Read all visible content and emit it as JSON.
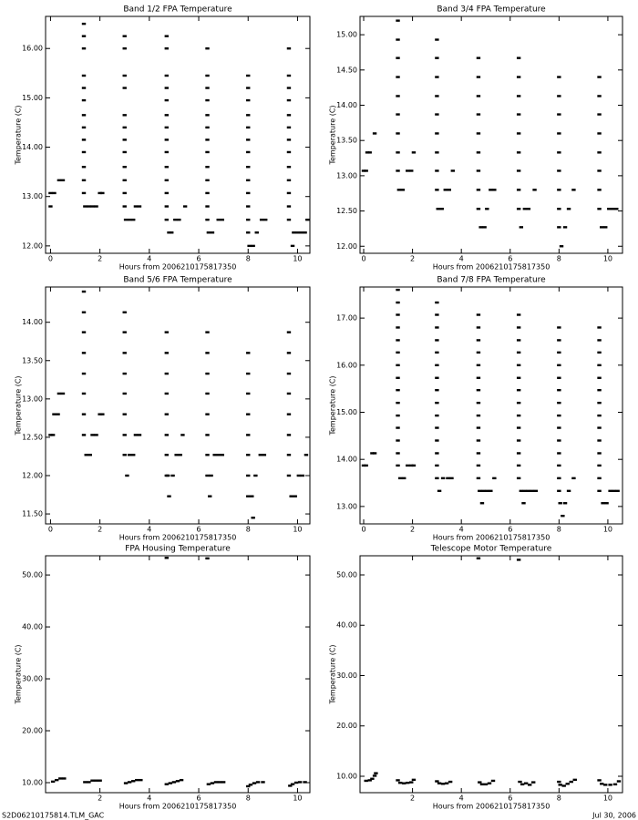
{
  "chart_data": [
    {
      "type": "scatter",
      "title": "Band 1/2 FPA Temperature",
      "xlabel": "Hours from 2006210175817350",
      "ylabel": "Temperature (C)",
      "color": "#000000",
      "xlim": [
        -0.2,
        10.5
      ],
      "ylim": [
        11.85,
        16.65
      ],
      "xticks": [
        0,
        2,
        4,
        6,
        8,
        10
      ],
      "yticks": [
        {
          "value": 12,
          "label": "12.00"
        },
        {
          "value": 13,
          "label": "13.00"
        },
        {
          "value": 14,
          "label": "14.00"
        },
        {
          "value": 15,
          "label": "15.00"
        },
        {
          "value": 16,
          "label": "16.00"
        }
      ],
      "x": [
        0,
        0,
        0.15,
        0.35,
        0.5,
        1.35,
        1.35,
        1.35,
        1.35,
        1.35,
        1.35,
        1.35,
        1.35,
        1.35,
        1.35,
        1.35,
        1.35,
        1.35,
        1.4,
        1.55,
        1.7,
        1.85,
        2.0,
        2.1,
        3.0,
        3.0,
        3.0,
        3.0,
        3.0,
        3.0,
        3.0,
        3.0,
        3.0,
        3.0,
        3.0,
        3.0,
        3.05,
        3.2,
        3.35,
        3.45,
        3.6,
        4.7,
        4.7,
        4.7,
        4.7,
        4.7,
        4.7,
        4.7,
        4.7,
        4.7,
        4.7,
        4.7,
        4.7,
        4.7,
        4.7,
        4.8,
        4.9,
        5.05,
        5.2,
        5.45,
        6.35,
        6.35,
        6.35,
        6.35,
        6.35,
        6.35,
        6.35,
        6.35,
        6.35,
        6.35,
        6.35,
        6.35,
        6.35,
        6.4,
        6.55,
        6.8,
        6.95,
        8.0,
        8.0,
        8.0,
        8.0,
        8.0,
        8.0,
        8.0,
        8.0,
        8.0,
        8.0,
        8.0,
        8.0,
        8.0,
        8.05,
        8.2,
        8.35,
        8.55,
        8.7,
        9.65,
        9.65,
        9.65,
        9.65,
        9.65,
        9.65,
        9.65,
        9.65,
        9.65,
        9.65,
        9.65,
        9.65,
        9.65,
        9.8,
        9.85,
        10.0,
        10.15,
        10.3,
        10.4
      ],
      "values": [
        12.8,
        13.07,
        13.07,
        13.33,
        13.33,
        16.5,
        16.25,
        16.0,
        15.45,
        15.2,
        14.95,
        14.65,
        14.4,
        14.15,
        13.9,
        13.6,
        13.33,
        13.07,
        12.8,
        12.8,
        12.8,
        12.8,
        13.07,
        13.07,
        16.25,
        16.0,
        15.45,
        15.2,
        14.65,
        14.4,
        14.15,
        13.9,
        13.6,
        13.33,
        13.07,
        12.8,
        12.53,
        12.53,
        12.53,
        12.8,
        12.8,
        16.25,
        16.0,
        15.45,
        15.2,
        14.95,
        14.65,
        14.4,
        14.15,
        13.9,
        13.6,
        13.33,
        13.07,
        12.8,
        12.53,
        12.27,
        12.27,
        12.53,
        12.53,
        12.8,
        16.0,
        15.45,
        15.2,
        14.95,
        14.65,
        14.4,
        14.15,
        13.9,
        13.6,
        13.33,
        13.07,
        12.8,
        12.53,
        12.27,
        12.27,
        12.53,
        12.53,
        15.45,
        15.2,
        14.95,
        14.65,
        14.4,
        14.15,
        13.9,
        13.6,
        13.33,
        13.07,
        12.8,
        12.53,
        12.27,
        12.0,
        12.0,
        12.27,
        12.53,
        12.53,
        16.0,
        15.45,
        15.2,
        14.95,
        14.65,
        14.4,
        14.15,
        13.9,
        13.6,
        13.33,
        13.07,
        12.8,
        12.53,
        12.0,
        12.27,
        12.27,
        12.27,
        12.27,
        12.53
      ]
    },
    {
      "type": "scatter",
      "title": "Band 3/4 FPA Temperature",
      "xlabel": "Hours from 2006210175817350",
      "ylabel": "Temperature (C)",
      "color": "#000000",
      "xlim": [
        -0.15,
        10.6
      ],
      "ylim": [
        11.9,
        15.26
      ],
      "xticks": [
        0,
        2,
        4,
        6,
        8,
        10
      ],
      "yticks": [
        {
          "value": 12,
          "label": "12.00"
        },
        {
          "value": 12.5,
          "label": "12.50"
        },
        {
          "value": 13,
          "label": "13.00"
        },
        {
          "value": 13.5,
          "label": "13.50"
        },
        {
          "value": 14,
          "label": "14.00"
        },
        {
          "value": 14.5,
          "label": "14.50"
        },
        {
          "value": 15,
          "label": "15.00"
        }
      ],
      "x": [
        0,
        0.1,
        0.15,
        0.25,
        0.45,
        1.4,
        1.4,
        1.4,
        1.4,
        1.4,
        1.4,
        1.4,
        1.4,
        1.4,
        1.45,
        1.6,
        1.8,
        1.95,
        2.05,
        3.0,
        3.0,
        3.0,
        3.0,
        3.0,
        3.0,
        3.0,
        3.0,
        3.0,
        3.05,
        3.2,
        3.35,
        3.5,
        3.65,
        4.7,
        4.7,
        4.7,
        4.7,
        4.7,
        4.7,
        4.7,
        4.7,
        4.7,
        4.8,
        4.95,
        5.05,
        5.2,
        5.35,
        6.35,
        6.35,
        6.35,
        6.35,
        6.35,
        6.35,
        6.35,
        6.35,
        6.35,
        6.45,
        6.6,
        6.75,
        7.0,
        8.0,
        8.0,
        8.0,
        8.0,
        8.0,
        8.0,
        8.0,
        8.0,
        8.0,
        8.1,
        8.25,
        8.4,
        8.6,
        9.65,
        9.65,
        9.65,
        9.65,
        9.65,
        9.65,
        9.65,
        9.65,
        9.75,
        9.9,
        10.05,
        10.2,
        10.35
      ],
      "values": [
        13.07,
        13.07,
        13.33,
        13.33,
        13.6,
        15.2,
        14.93,
        14.67,
        14.4,
        14.13,
        13.87,
        13.6,
        13.33,
        13.07,
        12.8,
        12.8,
        13.07,
        13.07,
        13.33,
        14.93,
        14.67,
        14.4,
        14.13,
        13.87,
        13.6,
        13.33,
        13.07,
        12.8,
        12.53,
        12.53,
        12.8,
        12.8,
        13.07,
        14.67,
        14.4,
        14.13,
        13.87,
        13.6,
        13.33,
        13.07,
        12.8,
        12.53,
        12.27,
        12.27,
        12.53,
        12.8,
        12.8,
        14.67,
        14.4,
        14.13,
        13.87,
        13.6,
        13.33,
        13.07,
        12.8,
        12.53,
        12.27,
        12.53,
        12.53,
        12.8,
        14.4,
        14.13,
        13.87,
        13.6,
        13.33,
        13.07,
        12.8,
        12.53,
        12.27,
        12.0,
        12.27,
        12.53,
        12.8,
        14.4,
        14.13,
        13.87,
        13.6,
        13.33,
        13.07,
        12.8,
        12.53,
        12.27,
        12.27,
        12.53,
        12.53,
        12.53
      ]
    },
    {
      "type": "scatter",
      "title": "Band 5/6 FPA Temperature",
      "xlabel": "Hours from 2006210175817350",
      "ylabel": "Temperature (C)",
      "color": "#000000",
      "xlim": [
        -0.2,
        10.5
      ],
      "ylim": [
        11.37,
        14.46
      ],
      "xticks": [
        0,
        2,
        4,
        6,
        8,
        10
      ],
      "yticks": [
        {
          "value": 11.5,
          "label": "11.50"
        },
        {
          "value": 12,
          "label": "12.00"
        },
        {
          "value": 12.5,
          "label": "12.50"
        },
        {
          "value": 13,
          "label": "13.00"
        },
        {
          "value": 13.5,
          "label": "13.50"
        },
        {
          "value": 14,
          "label": "14.00"
        }
      ],
      "x": [
        0,
        0.1,
        0.15,
        0.3,
        0.35,
        0.5,
        1.35,
        1.35,
        1.35,
        1.35,
        1.35,
        1.35,
        1.35,
        1.35,
        1.45,
        1.6,
        1.7,
        1.85,
        2.0,
        2.1,
        3.0,
        3.0,
        3.0,
        3.0,
        3.0,
        3.0,
        3.0,
        3.0,
        3.1,
        3.2,
        3.35,
        3.45,
        3.6,
        4.7,
        4.7,
        4.7,
        4.7,
        4.7,
        4.7,
        4.7,
        4.7,
        4.8,
        4.75,
        4.95,
        5.1,
        5.25,
        5.35,
        6.35,
        6.35,
        6.35,
        6.35,
        6.35,
        6.35,
        6.35,
        6.35,
        6.45,
        6.5,
        6.65,
        6.8,
        6.95,
        8.0,
        8.0,
        8.0,
        8.0,
        8.0,
        8.0,
        8.0,
        8.0,
        8.15,
        8.2,
        8.3,
        8.5,
        8.65,
        9.65,
        9.65,
        9.65,
        9.65,
        9.65,
        9.65,
        9.65,
        9.65,
        9.75,
        9.9,
        10.05,
        10.2,
        10.35
      ],
      "values": [
        12.53,
        12.53,
        12.8,
        12.8,
        13.07,
        13.07,
        14.4,
        14.13,
        13.87,
        13.6,
        13.33,
        13.07,
        12.8,
        12.53,
        12.27,
        12.27,
        12.53,
        12.53,
        12.8,
        12.8,
        14.13,
        13.87,
        13.6,
        13.33,
        13.07,
        12.8,
        12.53,
        12.27,
        12.0,
        12.27,
        12.27,
        12.53,
        12.53,
        13.87,
        13.6,
        13.33,
        13.07,
        12.8,
        12.53,
        12.27,
        12.0,
        11.73,
        12.0,
        12.0,
        12.27,
        12.27,
        12.53,
        13.87,
        13.6,
        13.33,
        13.07,
        12.8,
        12.53,
        12.27,
        12.0,
        11.73,
        12.0,
        12.27,
        12.27,
        12.27,
        13.6,
        13.33,
        13.07,
        12.8,
        12.53,
        12.27,
        12.0,
        11.73,
        11.73,
        11.45,
        12.0,
        12.27,
        12.27,
        13.87,
        13.6,
        13.33,
        13.07,
        12.8,
        12.53,
        12.27,
        12.0,
        11.73,
        11.73,
        12.0,
        12.0,
        12.27
      ]
    },
    {
      "type": "scatter",
      "title": "Band 7/8 FPA Temperature",
      "xlabel": "Hours from 2006210175817350",
      "ylabel": "Temperature (C)",
      "color": "#000000",
      "xlim": [
        -0.15,
        10.6
      ],
      "ylim": [
        12.63,
        17.66
      ],
      "xticks": [
        0,
        2,
        4,
        6,
        8,
        10
      ],
      "yticks": [
        {
          "value": 13,
          "label": "13.00"
        },
        {
          "value": 14,
          "label": "14.00"
        },
        {
          "value": 15,
          "label": "15.00"
        },
        {
          "value": 16,
          "label": "16.00"
        },
        {
          "value": 17,
          "label": "17.00"
        }
      ],
      "x": [
        0,
        0.1,
        0.35,
        0.45,
        1.4,
        1.4,
        1.4,
        1.4,
        1.4,
        1.4,
        1.4,
        1.4,
        1.4,
        1.4,
        1.4,
        1.4,
        1.4,
        1.4,
        1.4,
        1.5,
        1.65,
        1.8,
        1.95,
        2.05,
        3.0,
        3.0,
        3.0,
        3.0,
        3.0,
        3.0,
        3.0,
        3.0,
        3.0,
        3.0,
        3.0,
        3.0,
        3.0,
        3.0,
        3.0,
        3.1,
        3.25,
        3.45,
        3.6,
        4.7,
        4.7,
        4.7,
        4.7,
        4.7,
        4.7,
        4.7,
        4.7,
        4.7,
        4.7,
        4.7,
        4.7,
        4.7,
        4.7,
        4.75,
        4.9,
        4.85,
        5.05,
        5.2,
        5.35,
        6.35,
        6.35,
        6.35,
        6.35,
        6.35,
        6.35,
        6.35,
        6.35,
        6.35,
        6.35,
        6.35,
        6.35,
        6.35,
        6.35,
        6.45,
        6.6,
        6.55,
        6.75,
        6.9,
        7.05,
        8.0,
        8.0,
        8.0,
        8.0,
        8.0,
        8.0,
        8.0,
        8.0,
        8.0,
        8.0,
        8.0,
        8.0,
        8.0,
        8.0,
        8.05,
        8.15,
        8.25,
        8.4,
        8.6,
        9.65,
        9.65,
        9.65,
        9.65,
        9.65,
        9.65,
        9.65,
        9.65,
        9.65,
        9.65,
        9.65,
        9.65,
        9.65,
        9.65,
        9.8,
        9.95,
        10.1,
        10.25,
        10.4
      ],
      "values": [
        13.87,
        13.87,
        14.13,
        14.13,
        17.6,
        17.33,
        17.07,
        16.8,
        16.53,
        16.27,
        16.0,
        15.73,
        15.47,
        15.2,
        14.93,
        14.67,
        14.4,
        14.13,
        13.87,
        13.6,
        13.6,
        13.87,
        13.87,
        13.87,
        17.33,
        17.07,
        16.8,
        16.53,
        16.27,
        16.0,
        15.73,
        15.47,
        15.2,
        14.93,
        14.67,
        14.4,
        14.13,
        13.87,
        13.6,
        13.33,
        13.6,
        13.6,
        13.6,
        17.07,
        16.8,
        16.53,
        16.27,
        16.0,
        15.73,
        15.47,
        15.2,
        14.93,
        14.67,
        14.4,
        14.13,
        13.87,
        13.6,
        13.33,
        13.33,
        13.07,
        13.33,
        13.33,
        13.6,
        17.07,
        16.8,
        16.53,
        16.27,
        16.0,
        15.73,
        15.47,
        15.2,
        14.93,
        14.67,
        14.4,
        14.13,
        13.87,
        13.6,
        13.33,
        13.33,
        13.07,
        13.33,
        13.33,
        13.33,
        16.8,
        16.53,
        16.27,
        16.0,
        15.73,
        15.47,
        15.2,
        14.93,
        14.67,
        14.4,
        14.13,
        13.87,
        13.6,
        13.33,
        13.07,
        12.8,
        13.07,
        13.33,
        13.6,
        16.8,
        16.53,
        16.27,
        16.0,
        15.73,
        15.47,
        15.2,
        14.93,
        14.67,
        14.4,
        14.13,
        13.87,
        13.6,
        13.33,
        13.07,
        13.07,
        13.33,
        13.33,
        13.33
      ]
    },
    {
      "type": "scatter",
      "title": "FPA Housing Temperature",
      "xlabel": "Hours from 2006210175817350",
      "ylabel": "Temperature (C)",
      "color": "#000000",
      "xlim": [
        -0.2,
        10.5
      ],
      "ylim": [
        8.07,
        53.7
      ],
      "xticks": [
        2,
        4,
        6,
        8,
        10
      ],
      "yticks": [
        {
          "value": 10,
          "label": "10.00"
        },
        {
          "value": 20,
          "label": "20.00"
        },
        {
          "value": 30,
          "label": "30.00"
        },
        {
          "value": 40,
          "label": "40.00"
        },
        {
          "value": 50,
          "label": "50.00"
        }
      ],
      "x": [
        0.1,
        0.25,
        0.4,
        0.55,
        1.4,
        1.55,
        1.7,
        1.85,
        2.0,
        3.05,
        3.2,
        3.35,
        3.5,
        3.65,
        4.7,
        4.7,
        4.85,
        5.0,
        5.15,
        5.3,
        6.35,
        6.4,
        6.55,
        6.7,
        6.85,
        7.0,
        8.0,
        8.1,
        8.25,
        8.4,
        8.6,
        9.7,
        9.8,
        9.95,
        10.1,
        10.3
      ],
      "values": [
        10.2,
        10.5,
        10.8,
        10.8,
        10.1,
        10.1,
        10.4,
        10.4,
        10.4,
        9.9,
        10.1,
        10.3,
        10.5,
        10.5,
        53.3,
        9.7,
        9.9,
        10.1,
        10.3,
        10.5,
        53.2,
        9.7,
        9.9,
        10.1,
        10.1,
        10.1,
        9.3,
        9.6,
        9.9,
        10.1,
        10.1,
        9.4,
        9.7,
        10.0,
        10.1,
        10.1
      ]
    },
    {
      "type": "scatter",
      "title": "Telescope Motor Temperature",
      "xlabel": "Hours from 2006210175817350",
      "ylabel": "Temperature (C)",
      "color": "#000000",
      "xlim": [
        -0.15,
        10.6
      ],
      "ylim": [
        6.74,
        53.8
      ],
      "xticks": [
        2,
        4,
        6,
        8,
        10
      ],
      "yticks": [
        {
          "value": 10,
          "label": "10.00"
        },
        {
          "value": 20,
          "label": "20.00"
        },
        {
          "value": 30,
          "label": "30.00"
        },
        {
          "value": 40,
          "label": "40.00"
        },
        {
          "value": 50,
          "label": "50.00"
        }
      ],
      "x": [
        0.1,
        0.25,
        0.35,
        0.45,
        0.5,
        1.4,
        1.5,
        1.65,
        1.8,
        1.95,
        2.05,
        3.0,
        3.1,
        3.25,
        3.4,
        3.55,
        4.7,
        4.75,
        4.85,
        5.0,
        5.15,
        5.3,
        6.35,
        6.4,
        6.5,
        6.65,
        6.8,
        6.95,
        8.0,
        8.05,
        8.2,
        8.35,
        8.5,
        8.65,
        9.65,
        9.75,
        9.9,
        10.1,
        10.3,
        10.45
      ],
      "values": [
        9.1,
        9.2,
        9.5,
        10.1,
        10.6,
        9.2,
        8.7,
        8.6,
        8.7,
        8.8,
        9.3,
        9.0,
        8.6,
        8.5,
        8.6,
        8.9,
        53.3,
        8.8,
        8.4,
        8.4,
        8.6,
        9.1,
        53.0,
        8.9,
        8.4,
        8.6,
        8.3,
        8.8,
        8.9,
        8.3,
        8.1,
        8.5,
        8.9,
        9.3,
        9.2,
        8.5,
        8.3,
        8.3,
        8.4,
        9.0
      ]
    }
  ],
  "footer": {
    "left": "S2D06210175814.TLM_GAC",
    "right": "Jul 30, 2006"
  }
}
